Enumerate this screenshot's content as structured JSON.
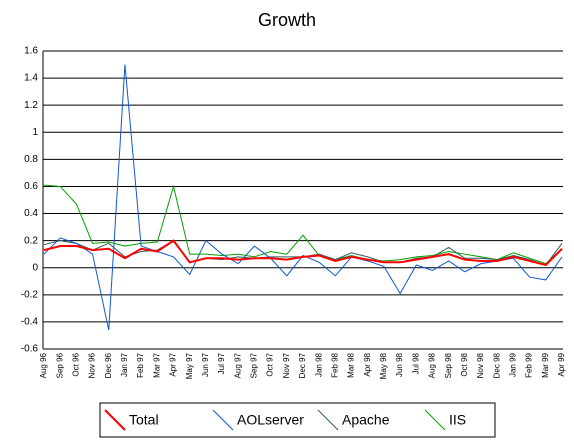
{
  "chart_data": {
    "type": "line",
    "title": "Growth",
    "categories": [
      "Aug 96",
      "Sep 96",
      "Oct 96",
      "Nov 96",
      "Dec 96",
      "Jan 97",
      "Feb 97",
      "Mar 97",
      "Apr 97",
      "May 97",
      "Jun 97",
      "Jul 97",
      "Aug 97",
      "Sep 97",
      "Oct 97",
      "Nov 97",
      "Dec 97",
      "Jan 98",
      "Feb 98",
      "Mar 98",
      "Apr 98",
      "May 98",
      "Jun 98",
      "Jul 98",
      "Aug 98",
      "Sep 98",
      "Oct 98",
      "Nov 98",
      "Dec 98",
      "Jan 99",
      "Feb 99",
      "Mar 99",
      "Apr 99"
    ],
    "series": [
      {
        "name": "Total",
        "color": "#ff0000",
        "values": [
          0.13,
          0.16,
          0.16,
          0.13,
          0.14,
          0.07,
          0.14,
          0.12,
          0.2,
          0.04,
          0.07,
          0.07,
          0.06,
          0.07,
          0.07,
          0.06,
          0.08,
          0.09,
          0.05,
          0.08,
          0.06,
          0.04,
          0.04,
          0.06,
          0.08,
          0.1,
          0.06,
          0.05,
          0.05,
          0.08,
          0.05,
          0.02,
          0.14
        ]
      },
      {
        "name": "AOLserver",
        "color": "#1058d0",
        "values": [
          0.1,
          0.22,
          0.18,
          0.1,
          -0.46,
          1.5,
          0.16,
          0.12,
          0.08,
          -0.05,
          0.2,
          0.1,
          0.03,
          0.16,
          0.07,
          -0.06,
          0.09,
          0.04,
          -0.06,
          0.08,
          0.05,
          0.01,
          -0.19,
          0.02,
          -0.02,
          0.05,
          -0.03,
          0.03,
          0.05,
          0.07,
          -0.07,
          -0.09,
          0.08
        ]
      },
      {
        "name": "Apache",
        "color": "#2f5a5a",
        "values": [
          0.17,
          0.2,
          0.18,
          0.13,
          0.18,
          0.08,
          0.12,
          0.13,
          0.2,
          0.04,
          0.07,
          0.06,
          0.08,
          0.07,
          0.08,
          0.08,
          0.08,
          0.1,
          0.06,
          0.11,
          0.08,
          0.04,
          0.04,
          0.07,
          0.08,
          0.15,
          0.07,
          0.07,
          0.06,
          0.09,
          0.06,
          0.02,
          0.18
        ]
      },
      {
        "name": "IIS",
        "color": "#00a000",
        "values": [
          0.61,
          0.6,
          0.47,
          0.18,
          0.19,
          0.16,
          0.18,
          0.19,
          0.6,
          0.1,
          0.1,
          0.09,
          0.1,
          0.08,
          0.12,
          0.1,
          0.24,
          0.09,
          0.06,
          0.09,
          0.06,
          0.05,
          0.06,
          0.08,
          0.09,
          0.12,
          0.1,
          0.08,
          0.06,
          0.11,
          0.07,
          0.03,
          0.14
        ]
      }
    ],
    "ylim": [
      -0.6,
      1.6
    ],
    "yticks": [
      -0.6,
      -0.4,
      -0.2,
      0,
      0.2,
      0.4,
      0.6,
      0.8,
      1,
      1.2,
      1.4,
      1.6
    ],
    "grid": true,
    "legend": "bottom"
  }
}
